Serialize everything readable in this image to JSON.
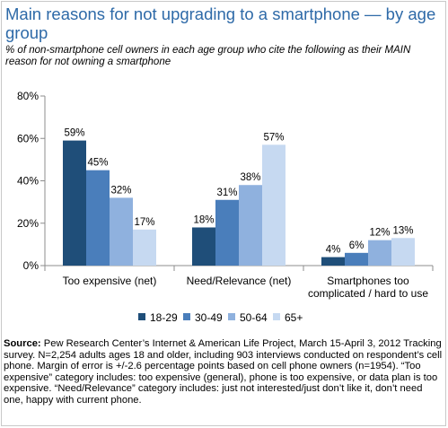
{
  "title": "Main reasons for not upgrading to a smartphone — by age group",
  "subtitle": "% of non-smartphone cell owners in each age group who cite the following as their MAIN reason for not owning a smartphone",
  "source": {
    "label": "Source:",
    "text": "Pew Research Center’s Internet & American Life Project, March 15-April 3, 2012 Tracking survey. N=2,254 adults ages 18 and older, including 903 interviews conducted on respondent’s cell phone. Margin of error is +/-2.6 percentage points based on cell phone owners (n=1954). “Too expensive” category includes: too expensive (general), phone is too expensive, or data plan is too expensive. “Need/Relevance” category includes: just not interested/just don’t like it, don’t need one, happy with current phone."
  },
  "chart_data": {
    "type": "bar",
    "categories": [
      "Too expensive (net)",
      "Need/Relevance (net)",
      "Smartphones too complicated / hard to use"
    ],
    "category_lines": [
      [
        "Too expensive (net)"
      ],
      [
        "Need/Relevance (net)"
      ],
      [
        "Smartphones too",
        "complicated / hard to use"
      ]
    ],
    "series": [
      {
        "name": "18-29",
        "values": [
          59,
          18,
          4
        ],
        "color": "#1f4e79"
      },
      {
        "name": "30-49",
        "values": [
          45,
          31,
          6
        ],
        "color": "#4a7ebb"
      },
      {
        "name": "50-64",
        "values": [
          32,
          38,
          12
        ],
        "color": "#8fb1de"
      },
      {
        "name": "65+",
        "values": [
          17,
          57,
          13
        ],
        "color": "#c6d9f1"
      }
    ],
    "value_suffix": "%",
    "yticks": [
      "0%",
      "20%",
      "40%",
      "60%",
      "80%"
    ],
    "ylim": [
      0,
      80
    ],
    "grid": false,
    "legend": "bottom"
  }
}
